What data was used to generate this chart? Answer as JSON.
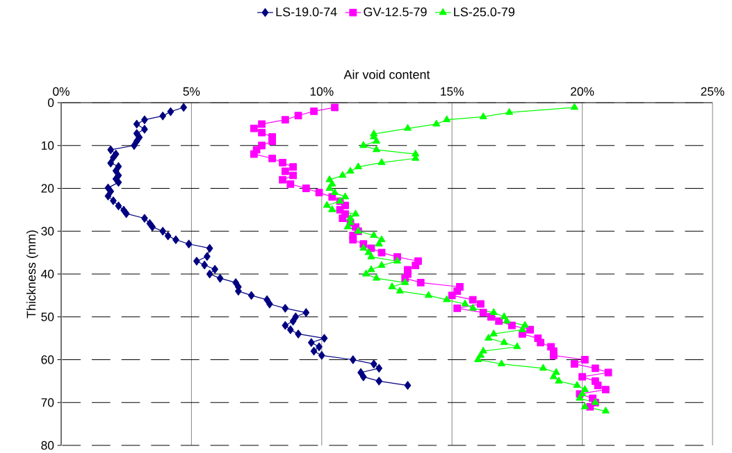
{
  "chart_data": {
    "type": "line",
    "xlabel": "Air void content",
    "ylabel": "Thickness (mm)",
    "xlim": [
      0,
      25
    ],
    "xticks": [
      {
        "value": 0,
        "label": "0%"
      },
      {
        "value": 5,
        "label": "5%"
      },
      {
        "value": 10,
        "label": "10%"
      },
      {
        "value": 15,
        "label": "15%"
      },
      {
        "value": 20,
        "label": "20%"
      },
      {
        "value": 25,
        "label": "25%"
      }
    ],
    "ylim": [
      80,
      0
    ],
    "yticks": [
      0,
      10,
      20,
      30,
      40,
      50,
      60,
      70,
      80
    ],
    "grid": true,
    "legend": "top",
    "line_style": "solid",
    "series": [
      {
        "name": "LS-19.0-74",
        "color": "#000080",
        "marker": "diamond",
        "x": [
          4.7,
          4.2,
          3.9,
          3.2,
          2.9,
          3.2,
          2.9,
          3.0,
          2.9,
          2.8,
          1.9,
          2.1,
          2.0,
          1.9,
          2.2,
          2.1,
          2.2,
          2.1,
          2.2,
          1.8,
          1.9,
          1.8,
          2.0,
          2.2,
          2.4,
          2.5,
          3.2,
          3.4,
          3.5,
          3.9,
          4.1,
          4.4,
          4.9,
          5.7,
          5.6,
          5.2,
          5.5,
          5.9,
          5.7,
          6.1,
          6.7,
          6.8,
          6.8,
          7.3,
          7.9,
          8.0,
          8.6,
          9.4,
          9.0,
          8.9,
          8.6,
          8.8,
          9.1,
          10.1,
          9.6,
          9.9,
          9.7,
          10.0,
          11.2,
          12.0,
          12.2,
          11.5,
          11.6,
          12.2,
          13.3
        ],
        "values": [
          1.1,
          2.1,
          3.1,
          4,
          5,
          6.2,
          7.2,
          8.1,
          9,
          10,
          11,
          12,
          12.8,
          14.1,
          14.9,
          15.9,
          17,
          17.8,
          18.6,
          19.9,
          20.7,
          21.8,
          22.9,
          24.1,
          25.1,
          25.9,
          27,
          28.2,
          29,
          30,
          31.1,
          32,
          33,
          34,
          35.9,
          37,
          37.9,
          38.9,
          40,
          41,
          42,
          43,
          44,
          45,
          46,
          47,
          48,
          49,
          50,
          51,
          52,
          53,
          54,
          55,
          56,
          57,
          58,
          59,
          60,
          61,
          62,
          63,
          64,
          65,
          66
        ]
      },
      {
        "name": "GV-12.5-79",
        "color": "#ff00ff",
        "marker": "square",
        "x": [
          10.5,
          9.7,
          9.1,
          8.6,
          7.7,
          7.4,
          7.7,
          8.1,
          8.1,
          7.7,
          7.5,
          7.4,
          8.1,
          8.5,
          8.9,
          8.6,
          8.9,
          8.5,
          8.8,
          9.4,
          9.9,
          10.4,
          10.7,
          10.9,
          10.7,
          10.9,
          10.8,
          11.1,
          11.3,
          11.4,
          11.2,
          11.2,
          11.6,
          11.9,
          12.3,
          12.9,
          13.7,
          13.6,
          13.3,
          13.3,
          13.2,
          13.8,
          15.3,
          15.2,
          15.0,
          15.8,
          16.1,
          15.2,
          16.2,
          16.5,
          16.8,
          17.3,
          18.0,
          17.7,
          18.3,
          18.4,
          18.8,
          18.9,
          18.9,
          20.1,
          19.7,
          20.5,
          21.0,
          20.0,
          20.5,
          20.6,
          20.9,
          19.9,
          20.4,
          20.5,
          20.3
        ],
        "values": [
          1.1,
          2,
          3,
          4,
          5,
          6,
          7,
          8,
          9,
          10,
          11,
          12,
          13,
          14,
          15,
          16,
          17,
          18,
          19,
          20,
          21,
          22,
          23,
          24,
          25,
          26,
          27,
          28,
          29,
          30,
          31,
          32,
          33,
          34,
          35,
          36,
          37,
          38,
          39,
          40,
          41,
          42,
          43,
          44,
          45,
          46,
          47,
          48,
          49,
          50,
          51,
          52,
          53,
          54,
          55,
          56,
          57,
          58,
          59,
          60,
          61,
          62,
          63,
          64,
          65,
          66,
          67,
          68,
          69,
          70,
          71
        ]
      },
      {
        "name": "LS-25.0-79",
        "color": "#00ff00",
        "marker": "triangle",
        "x": [
          19.7,
          17.2,
          16.2,
          14.8,
          14.4,
          13.3,
          12.0,
          12.0,
          12.1,
          11.6,
          12.1,
          13.6,
          13.6,
          12.3,
          11.4,
          11.1,
          10.8,
          10.3,
          10.4,
          10.3,
          10.5,
          10.9,
          10.7,
          10.2,
          10.4,
          11.3,
          11.1,
          11.1,
          11.0,
          11.4,
          12.0,
          12.3,
          12.2,
          11.6,
          11.8,
          11.9,
          12.9,
          12.3,
          11.9,
          11.7,
          12.1,
          13.2,
          12.7,
          13.0,
          14.1,
          14.8,
          15.5,
          15.8,
          16.6,
          17.0,
          17.1,
          17.8,
          17.7,
          16.6,
          16.4,
          17.0,
          17.5,
          16.2,
          16.1,
          16.0,
          16.9,
          18.5,
          19.0,
          18.9,
          19.1,
          19.8,
          20.1,
          20.0,
          19.9,
          20.5,
          20.1,
          20.9
        ],
        "values": [
          1.1,
          2.3,
          3.3,
          4,
          5,
          6,
          7.3,
          8,
          9,
          10,
          11,
          12,
          13,
          14,
          15,
          16,
          17,
          18,
          19,
          20,
          21,
          22,
          23,
          24,
          25,
          26,
          27,
          28,
          29,
          30,
          31,
          32,
          33,
          34,
          35,
          36,
          37,
          38,
          39,
          40,
          41,
          42,
          43,
          44,
          45,
          46,
          47,
          48,
          49,
          50,
          51,
          52,
          53,
          54,
          55,
          56,
          57,
          58,
          59,
          60,
          61,
          62,
          63,
          64,
          65,
          66,
          67,
          68,
          69,
          70,
          71,
          72
        ]
      }
    ]
  }
}
